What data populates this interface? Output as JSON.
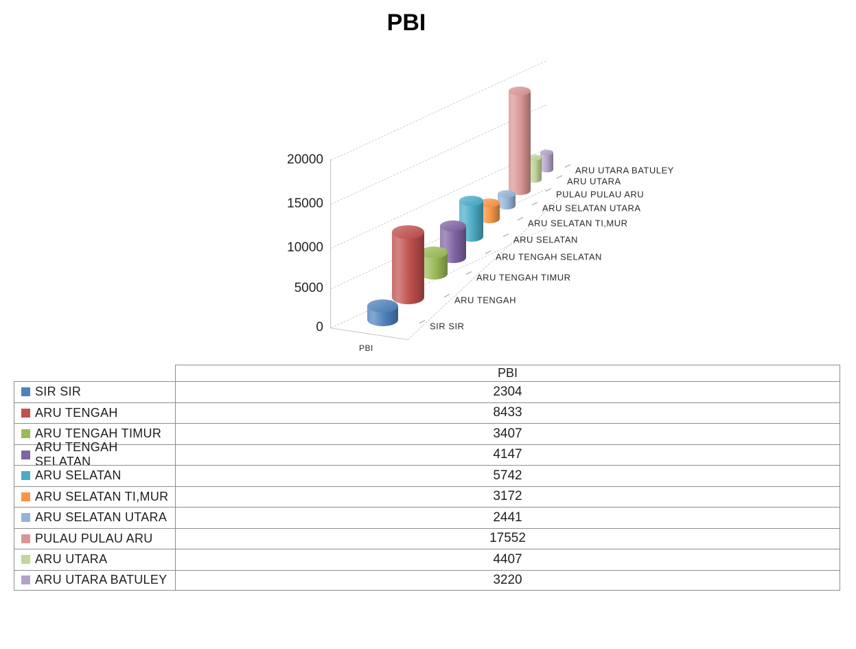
{
  "chart_data": {
    "type": "bar",
    "style": "3d-cylinder",
    "title": "PBI",
    "series_label": "PBI",
    "xlabel": "",
    "ylabel": "",
    "categories": [
      "SIR SIR",
      "ARU TENGAH",
      "ARU TENGAH TIMUR",
      "ARU TENGAH SELATAN",
      "ARU SELATAN",
      "ARU SELATAN TI,MUR",
      "ARU SELATAN UTARA",
      "PULAU PULAU ARU",
      "ARU UTARA",
      "ARU UTARA BATULEY"
    ],
    "values": [
      2304,
      8433,
      3407,
      4147,
      5742,
      3172,
      2441,
      17552,
      4407,
      3220
    ],
    "colors": [
      "#4F81BD",
      "#C0504D",
      "#9BBB59",
      "#8064A2",
      "#4BACC6",
      "#F79646",
      "#95B3D7",
      "#D99694",
      "#C3D69B",
      "#B3A2C7"
    ],
    "y_ticks": [
      "0",
      "5000",
      "10000",
      "15000",
      "20000"
    ],
    "ylim": [
      0,
      20000
    ],
    "grid": "dashed",
    "legend_position": "table-below"
  },
  "table": {
    "header": "PBI",
    "rows": [
      {
        "label": "SIR SIR",
        "value": "2304"
      },
      {
        "label": "ARU TENGAH",
        "value": "8433"
      },
      {
        "label": "ARU TENGAH TIMUR",
        "value": "3407"
      },
      {
        "label": "ARU TENGAH SELATAN",
        "value": "4147"
      },
      {
        "label": "ARU SELATAN",
        "value": "5742"
      },
      {
        "label": "ARU SELATAN TI,MUR",
        "value": "3172"
      },
      {
        "label": "ARU SELATAN UTARA",
        "value": "2441"
      },
      {
        "label": "PULAU PULAU ARU",
        "value": "17552"
      },
      {
        "label": "ARU UTARA",
        "value": "4407"
      },
      {
        "label": "ARU UTARA BATULEY",
        "value": "3220"
      }
    ]
  }
}
